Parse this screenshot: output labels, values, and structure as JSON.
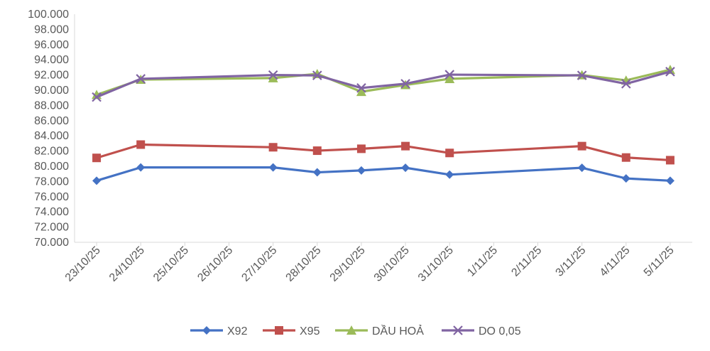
{
  "chart_data": {
    "type": "line",
    "title": "",
    "xlabel": "",
    "ylabel": "",
    "ylim": [
      70000,
      100000
    ],
    "ytick_step": 2000,
    "ytick_labels": [
      "70.000",
      "72.000",
      "74.000",
      "76.000",
      "78.000",
      "80.000",
      "82.000",
      "84.000",
      "86.000",
      "88.000",
      "90.000",
      "92.000",
      "94.000",
      "96.000",
      "98.000",
      "100.000"
    ],
    "categories": [
      "23/10/25",
      "24/10/25",
      "25/10/25",
      "26/10/25",
      "27/10/25",
      "28/10/25",
      "29/10/25",
      "30/10/25",
      "31/10/25",
      "1/11/25",
      "2/11/25",
      "3/11/25",
      "4/11/25",
      "5/11/25"
    ],
    "series": [
      {
        "name": "X92",
        "color": "#4472C4",
        "marker": "diamond",
        "values": [
          78100,
          79850,
          null,
          null,
          79850,
          79200,
          79450,
          79800,
          78900,
          null,
          null,
          79800,
          78400,
          78100
        ]
      },
      {
        "name": "X95",
        "color": "#C0504D",
        "marker": "square",
        "values": [
          81100,
          82850,
          null,
          null,
          82500,
          82050,
          82300,
          82650,
          81750,
          null,
          null,
          82650,
          81150,
          80800
        ]
      },
      {
        "name": "DẦU HOẢ",
        "color": "#9BBB59",
        "marker": "triangle",
        "values": [
          89400,
          91400,
          null,
          null,
          91600,
          92150,
          89800,
          90700,
          91500,
          null,
          null,
          92000,
          91300,
          92700
        ]
      },
      {
        "name": "DO 0,05",
        "color": "#8064A2",
        "marker": "x",
        "values": [
          89100,
          91500,
          null,
          null,
          92000,
          91950,
          90300,
          90850,
          92050,
          null,
          null,
          91950,
          90850,
          92450
        ]
      }
    ],
    "grid": false,
    "legend_position": "bottom"
  }
}
